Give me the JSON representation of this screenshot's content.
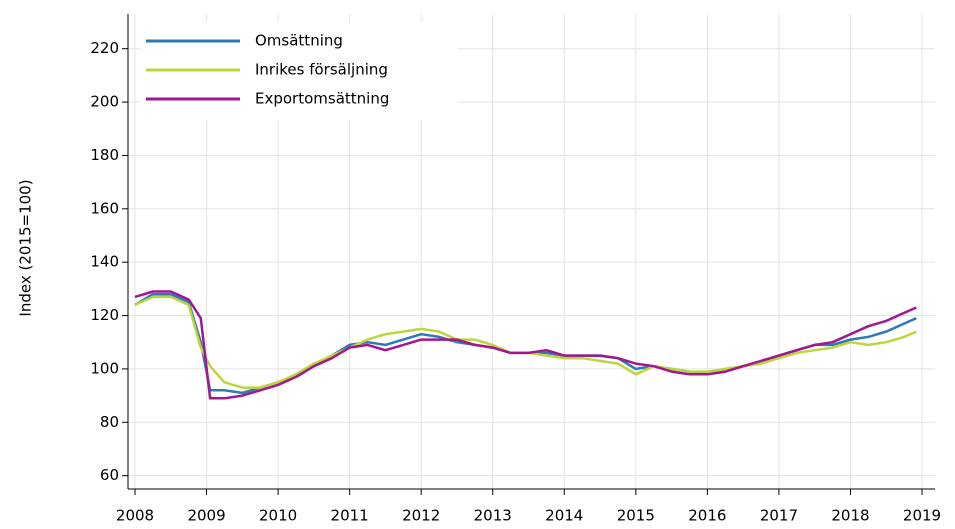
{
  "chart_data": {
    "type": "line",
    "y_label": "Index (2015=100)",
    "x": [
      2008,
      2008.25,
      2008.5,
      2008.75,
      2008.92,
      2009.05,
      2009.25,
      2009.5,
      2009.75,
      2010,
      2010.25,
      2010.5,
      2010.75,
      2011,
      2011.25,
      2011.5,
      2011.75,
      2012,
      2012.25,
      2012.5,
      2012.75,
      2013,
      2013.25,
      2013.5,
      2013.75,
      2014,
      2014.25,
      2014.5,
      2014.75,
      2015,
      2015.25,
      2015.5,
      2015.75,
      2016,
      2016.25,
      2016.5,
      2016.75,
      2017,
      2017.25,
      2017.5,
      2017.75,
      2018,
      2018.25,
      2018.5,
      2018.75,
      2018.92
    ],
    "series": [
      {
        "name": "Omsättning",
        "color": "#2a7ab8",
        "values": [
          124,
          128,
          128,
          125,
          110,
          92,
          92,
          91,
          93,
          95,
          97,
          101,
          105,
          109,
          110,
          109,
          111,
          113,
          112,
          110,
          109,
          108,
          106,
          106,
          106,
          105,
          105,
          105,
          104,
          100,
          101,
          100,
          99,
          98,
          99,
          101,
          102,
          105,
          107,
          109,
          109,
          111,
          112,
          114,
          117,
          119
        ]
      },
      {
        "name": "Inrikes försäljning",
        "color": "#bcd63a",
        "values": [
          124,
          127,
          127,
          124,
          108,
          101,
          95,
          93,
          93,
          95,
          98,
          102,
          105,
          108,
          111,
          113,
          114,
          115,
          114,
          111,
          111,
          109,
          106,
          106,
          105,
          104,
          104,
          103,
          102,
          98,
          101,
          100,
          99,
          99,
          100,
          101,
          102,
          104,
          106,
          107,
          108,
          110,
          109,
          110,
          112,
          114
        ]
      },
      {
        "name": "Exportomsättning",
        "color": "#a3168f",
        "values": [
          127,
          129,
          129,
          126,
          119,
          89,
          89,
          90,
          92,
          94,
          97,
          101,
          104,
          108,
          109,
          107,
          109,
          111,
          111,
          111,
          109,
          108,
          106,
          106,
          107,
          105,
          105,
          105,
          104,
          102,
          101,
          99,
          98,
          98,
          99,
          101,
          103,
          105,
          107,
          109,
          110,
          113,
          116,
          118,
          121,
          123
        ]
      }
    ],
    "xlim": [
      2008,
      2019
    ],
    "xticks": [
      2008,
      2009,
      2010,
      2011,
      2012,
      2013,
      2014,
      2015,
      2016,
      2017,
      2018,
      2019
    ],
    "ylim": [
      55,
      233
    ],
    "yticks": [
      60,
      80,
      100,
      120,
      140,
      160,
      180,
      200,
      220
    ],
    "grid": true,
    "legend": "upper-left"
  }
}
